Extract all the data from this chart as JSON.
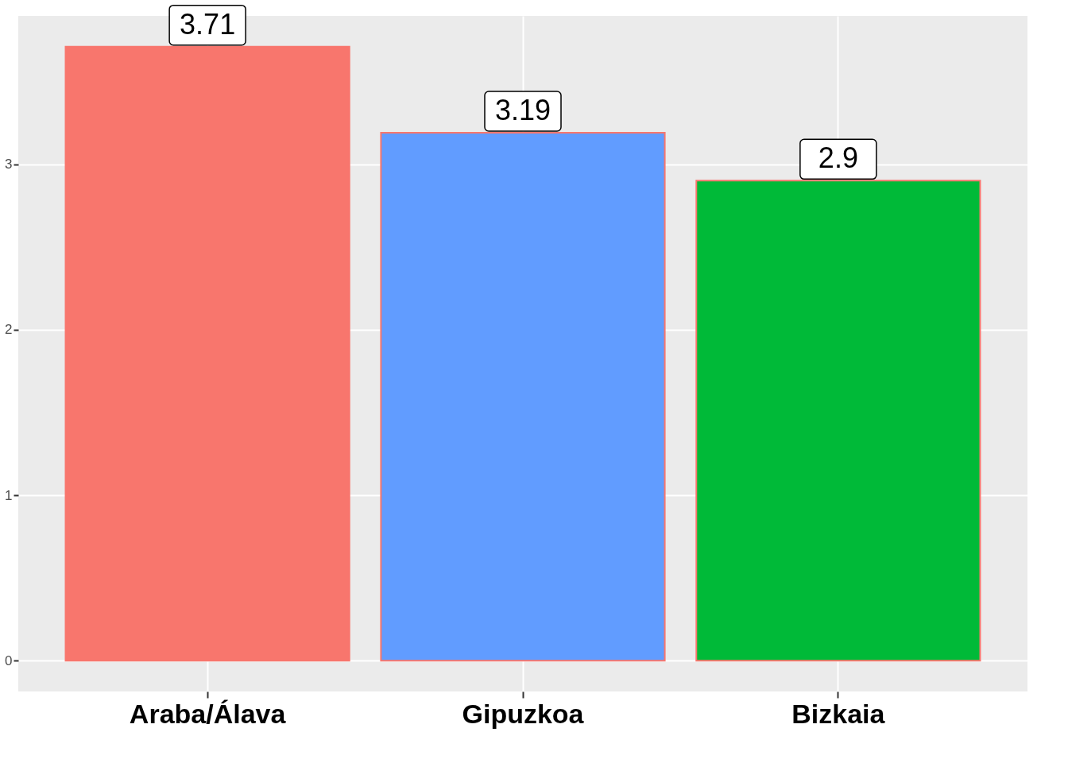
{
  "chart_data": {
    "type": "bar",
    "categories": [
      "Araba/Álava",
      "Gipuzkoa",
      "Bizkaia"
    ],
    "values": [
      3.71,
      3.19,
      2.9
    ],
    "colors": [
      "#f8766d",
      "#619cff",
      "#00ba38"
    ],
    "ylim": [
      -0.1855,
      3.8955
    ],
    "yticks": [
      0,
      1,
      2,
      3
    ],
    "grid": true,
    "data_labels": true
  }
}
